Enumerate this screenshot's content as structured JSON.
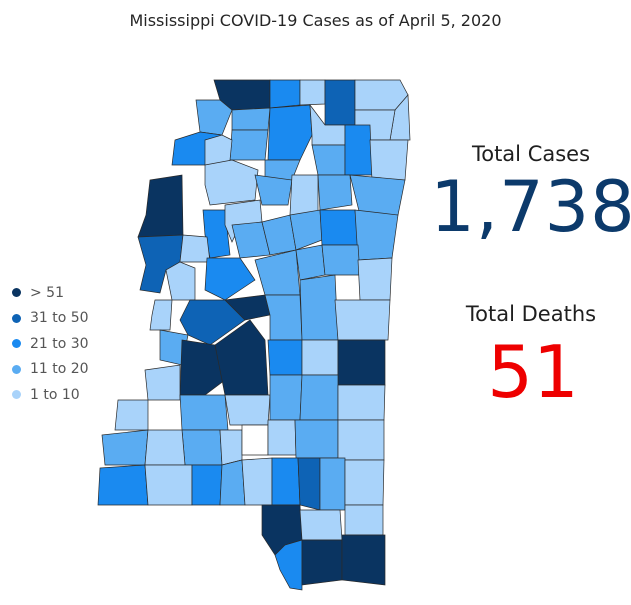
{
  "title": "Mississippi COVID-19 Cases as of April 5, 2020",
  "legend": [
    {
      "label": "> 51",
      "color": "#0a3461"
    },
    {
      "label": "31 to 50",
      "color": "#0e63b5"
    },
    {
      "label": "21 to 30",
      "color": "#1a8af0"
    },
    {
      "label": "11 to 20",
      "color": "#5aacf2"
    },
    {
      "label": "1 to 10",
      "color": "#a9d3fa"
    }
  ],
  "stats": {
    "cases_label": "Total Cases",
    "cases_value": "1,738",
    "deaths_label": "Total Deaths",
    "deaths_value": "51"
  },
  "colors": {
    "none": "#ffffff",
    "cases_value": "#0c3a6b",
    "deaths_value": "#ee0000"
  }
}
